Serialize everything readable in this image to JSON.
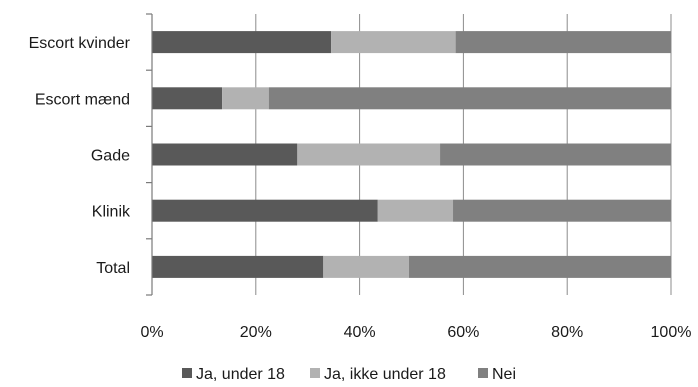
{
  "chart_data": {
    "type": "bar",
    "orientation": "horizontal",
    "stacked": "percent",
    "categories": [
      "Escort kvinder",
      "Escort mænd",
      "Gade",
      "Klinik",
      "Total"
    ],
    "series": [
      {
        "name": "Ja, under 18",
        "values": [
          34.5,
          13.5,
          28,
          43.5,
          33
        ],
        "color": "#595959"
      },
      {
        "name": "Ja, ikke under 18",
        "values": [
          24,
          9,
          27.5,
          14.5,
          16.5
        ],
        "color": "#b2b2b2"
      },
      {
        "name": "Nei",
        "values": [
          41.5,
          77.5,
          44.5,
          42,
          50.5
        ],
        "color": "#808080"
      }
    ],
    "xlim": [
      0,
      100
    ],
    "xticks": [
      "0%",
      "20%",
      "40%",
      "60%",
      "80%",
      "100%"
    ],
    "grid": true,
    "legend": "bottom"
  }
}
